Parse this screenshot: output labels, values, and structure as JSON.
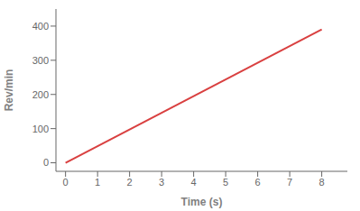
{
  "chart_data": {
    "type": "line",
    "x": [
      0,
      8
    ],
    "values": [
      0,
      390
    ],
    "color": "#d94040",
    "xlabel": "Time (s)",
    "ylabel": "Rev/min",
    "xlim": [
      -0.3,
      8.8
    ],
    "ylim": [
      -25,
      450
    ],
    "xticks": [
      0,
      1,
      2,
      3,
      4,
      5,
      6,
      7,
      8
    ],
    "yticks": [
      0,
      100,
      200,
      300,
      400
    ],
    "grid": false
  }
}
